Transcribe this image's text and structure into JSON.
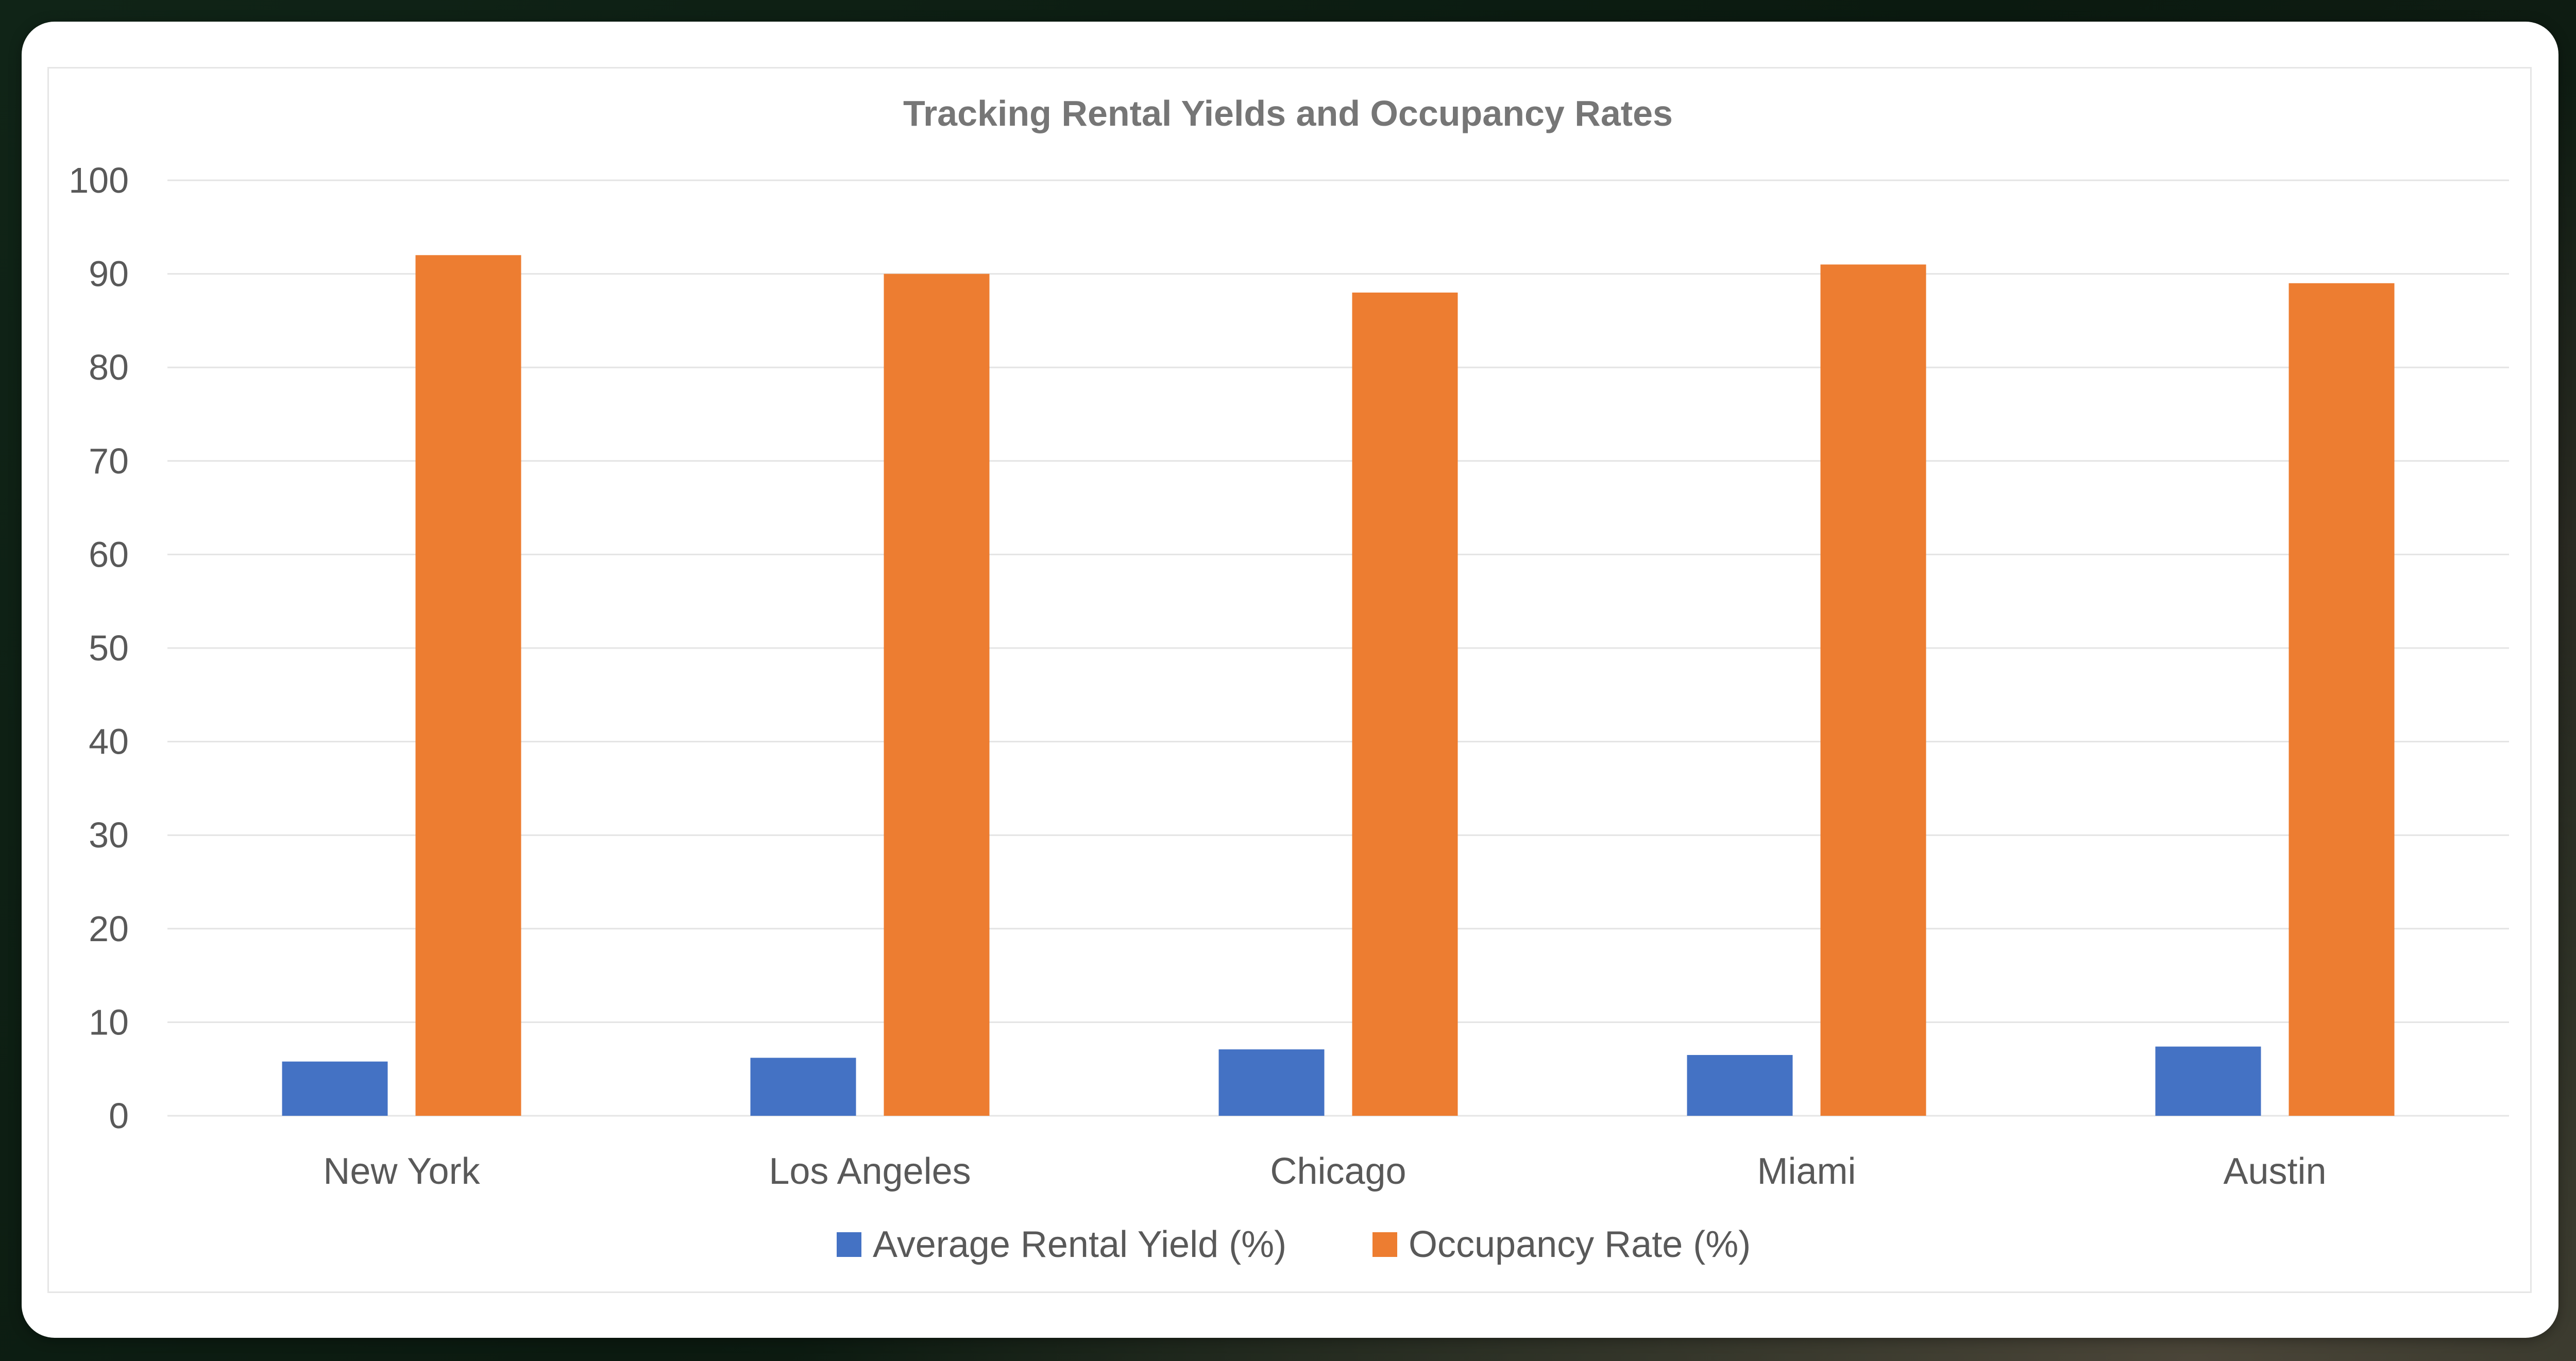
{
  "chart_data": {
    "type": "bar",
    "title": "Tracking Rental Yields and Occupancy Rates",
    "xlabel": "",
    "ylabel": "",
    "categories": [
      "New York",
      "Los Angeles",
      "Chicago",
      "Miami",
      "Austin"
    ],
    "series": [
      {
        "name": "Average Rental Yield (%)",
        "color": "#4472C4",
        "values": [
          5.8,
          6.2,
          7.1,
          6.5,
          7.4
        ]
      },
      {
        "name": "Occupancy Rate (%)",
        "color": "#ED7D31",
        "values": [
          92,
          90,
          88,
          91,
          89
        ]
      }
    ],
    "ylim": [
      0,
      100
    ],
    "yticks": [
      0,
      10,
      20,
      30,
      40,
      50,
      60,
      70,
      80,
      90,
      100
    ],
    "grid": true,
    "legend_position": "bottom"
  }
}
